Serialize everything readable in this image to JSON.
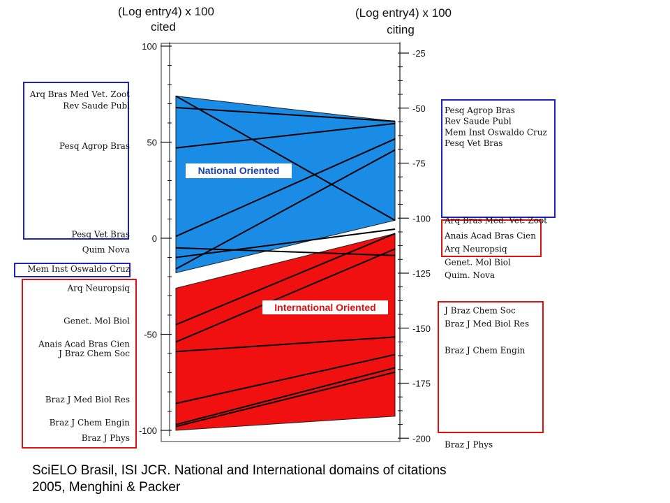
{
  "chart_data": {
    "type": "slope",
    "left_axis": {
      "title_line1": "(Log entry4) x 100",
      "title_line2": "cited",
      "ticks": [
        "100",
        "50",
        "0",
        "-50",
        "-100"
      ],
      "tick_values": [
        100,
        50,
        0,
        -50,
        -100
      ],
      "ylim": [
        -103,
        102
      ]
    },
    "right_axis": {
      "title_line1": "(Log entry4) x 100",
      "title_line2": "citing",
      "ticks": [
        "-25",
        "-50",
        "-75",
        "-100",
        "-125",
        "-150",
        "-175",
        "-200"
      ],
      "tick_values": [
        -25,
        -50,
        -75,
        -100,
        -125,
        -150,
        -175,
        -200
      ],
      "ylim": [
        -200,
        -20
      ]
    },
    "regions": [
      {
        "label": "National Oriented",
        "color": "#1a8ce6",
        "left_range": [
          -18,
          74
        ],
        "right_range": [
          -101,
          -56
        ]
      },
      {
        "label": "International Oriented",
        "color": "#f01010",
        "left_range": [
          -100,
          -26
        ],
        "right_range": [
          -190,
          -107
        ]
      }
    ],
    "lines": [
      {
        "left": 68,
        "right": -56
      },
      {
        "left": 74,
        "right": -101
      },
      {
        "left": 47,
        "right": -57
      },
      {
        "left": 1,
        "right": -64
      },
      {
        "left": -16,
        "right": -69
      },
      {
        "left": -5,
        "right": -117
      },
      {
        "left": -10,
        "right": -105
      },
      {
        "left": -45,
        "right": -107
      },
      {
        "left": -54,
        "right": -114
      },
      {
        "left": -59,
        "right": -154
      },
      {
        "left": -86,
        "right": -162
      },
      {
        "left": -97,
        "right": -168
      },
      {
        "left": -98,
        "right": -170
      }
    ],
    "left_groups": [
      {
        "type": "box-blue",
        "labels": [
          {
            "text": "Arq Bras Med Vet. Zoot",
            "value": 75
          },
          {
            "text": "Rev Saude Publ",
            "value": 69
          },
          {
            "text": "Pesq Agrop Bras",
            "value": 48
          },
          {
            "text": "Pesq Vet Bras",
            "value": 2
          }
        ]
      },
      {
        "type": "plain",
        "labels": [
          {
            "text": "Quim Nova",
            "value": -6
          }
        ]
      },
      {
        "type": "box-blue",
        "labels": [
          {
            "text": "Mem  Inst  Oswaldo Cruz",
            "value": -16
          }
        ]
      },
      {
        "type": "box-red",
        "labels": [
          {
            "text": "Arq Neuropsiq",
            "value": -26
          },
          {
            "text": "Genet. Mol Biol",
            "value": -43
          },
          {
            "text": "Anais Acad Bras Cien",
            "value": -55
          },
          {
            "text": "J  Braz  Chem  Soc",
            "value": -60
          },
          {
            "text": "Braz  J Med  Biol  Res",
            "value": -84
          },
          {
            "text": "Braz J Chem  Engin",
            "value": -96
          },
          {
            "text": "Braz  J  Phys",
            "value": -104
          }
        ]
      }
    ],
    "right_groups": [
      {
        "type": "box-blue",
        "labels": [
          {
            "text": "Pesq  Agrop  Bras",
            "value": -51
          },
          {
            "text": "Rev  Saude  Publ",
            "value": -56
          },
          {
            "text": "Mem   Inst  Oswaldo Cruz",
            "value": -61
          },
          {
            "text": "Pesq  Vet  Bras",
            "value": -66
          },
          {
            "text": "Arq  Bras  Med. Vet. Zoot",
            "value": -101
          }
        ]
      },
      {
        "type": "box-red",
        "labels": [
          {
            "text": "Anais Acad Bras Cien",
            "value": -108
          },
          {
            "text": "Arq  Neuropsiq",
            "value": -114
          },
          {
            "text": "Genet.  Mol  Biol",
            "value": -120
          }
        ]
      },
      {
        "type": "plain",
        "labels": [
          {
            "text": "Quim. Nova",
            "value": -126
          }
        ]
      },
      {
        "type": "box-red",
        "labels": [
          {
            "text": "J  Braz  Chem   Soc",
            "value": -142
          },
          {
            "text": "Braz  J  Med    Biol  Res",
            "value": -148
          },
          {
            "text": "Braz J Chem  Engin",
            "value": -160
          },
          {
            "text": "Braz   J   Phys",
            "value": -203
          }
        ]
      }
    ]
  },
  "caption_line1": "SciELO Brasil, ISI JCR.  National and International domains of citations",
  "caption_line2": "2005, Menghini & Packer"
}
